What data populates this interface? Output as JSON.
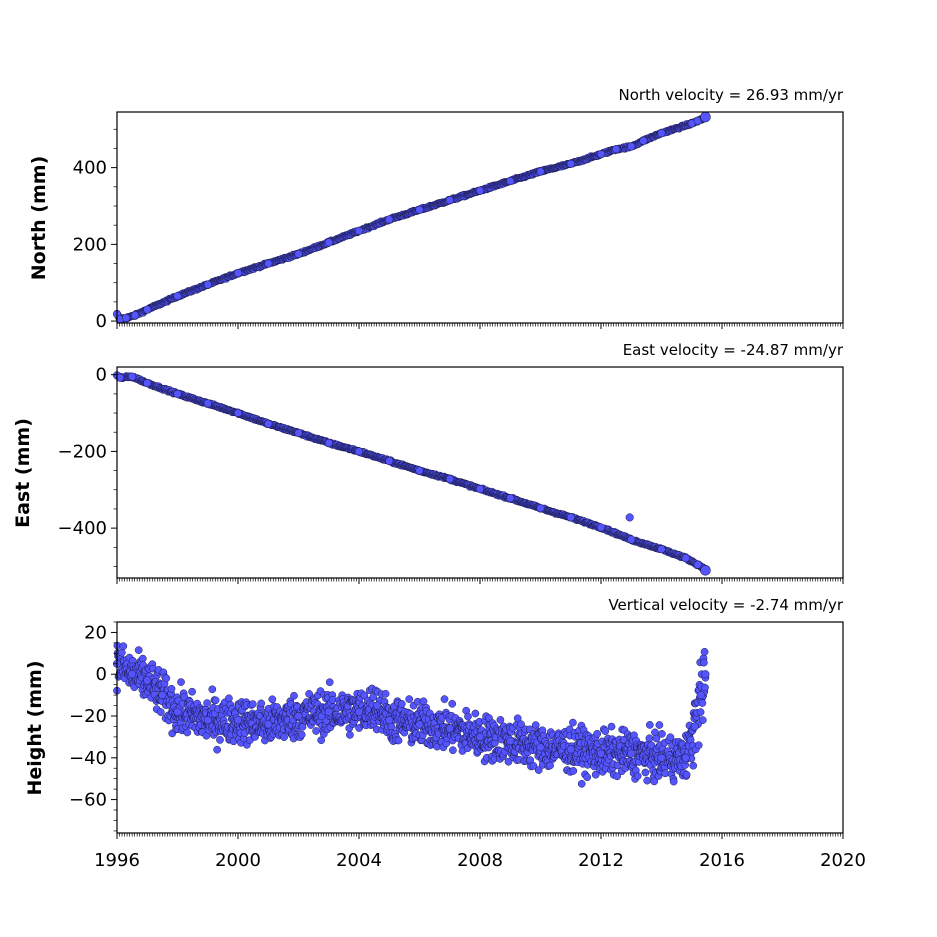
{
  "chart_data": [
    {
      "type": "scatter",
      "title": "North velocity = 26.93 mm/yr",
      "ylabel": "North (mm)",
      "xlabel": "",
      "xlim": [
        1996,
        2020
      ],
      "ylim": [
        -5,
        545
      ],
      "yticks": [
        0,
        200,
        400
      ],
      "ytick_labels": [
        "0",
        "200",
        "400"
      ],
      "grid": false,
      "marker_color": "#5555ff",
      "series": [
        {
          "x": [
            1996.0,
            1996.1,
            1996.3,
            1996.6,
            1997.0,
            1998.0,
            1999.0,
            2000.0,
            2001.0,
            2002.0,
            2003.0,
            2004.0,
            2005.0,
            2006.0,
            2007.0,
            2008.0,
            2009.0,
            2010.0,
            2011.0,
            2012.0,
            2012.5,
            2013.0,
            2013.4,
            2014.0,
            2015.0,
            2015.2,
            2015.4,
            2015.45
          ],
          "y": [
            18,
            5,
            8,
            15,
            30,
            65,
            95,
            125,
            150,
            175,
            205,
            235,
            265,
            290,
            315,
            340,
            365,
            390,
            410,
            435,
            448,
            455,
            470,
            490,
            515,
            522,
            528,
            532
          ]
        }
      ]
    },
    {
      "type": "scatter",
      "title": "East velocity = -24.87 mm/yr",
      "ylabel": "East (mm)",
      "xlabel": "",
      "xlim": [
        1996,
        2020
      ],
      "ylim": [
        -530,
        20
      ],
      "yticks": [
        -400,
        -200,
        0
      ],
      "ytick_labels": [
        "−400",
        "−200",
        "0"
      ],
      "grid": false,
      "marker_color": "#5555ff",
      "series": [
        {
          "x": [
            1996.0,
            1996.1,
            1996.5,
            1997.0,
            1998.0,
            1999.0,
            2000.0,
            2001.0,
            2002.0,
            2003.0,
            2004.0,
            2005.0,
            2006.0,
            2007.0,
            2008.0,
            2009.0,
            2010.0,
            2011.0,
            2012.0,
            2013.0,
            2014.0,
            2014.8,
            2015.2,
            2015.4,
            2015.45
          ],
          "y": [
            -2,
            -8,
            -5,
            -22,
            -50,
            -75,
            -100,
            -128,
            -152,
            -178,
            -200,
            -225,
            -250,
            -272,
            -298,
            -322,
            -348,
            -372,
            -398,
            -430,
            -455,
            -478,
            -495,
            -505,
            -510
          ]
        },
        {
          "name": "",
          "x": [
            2012.95
          ],
          "y": [
            -372
          ]
        }
      ]
    },
    {
      "type": "scatter",
      "title": "Vertical velocity = -2.74 mm/yr",
      "ylabel": "Height (mm)",
      "xlabel": "",
      "xlim": [
        1996,
        2020
      ],
      "ylim": [
        -76,
        25
      ],
      "yticks": [
        -60,
        -40,
        -20,
        0,
        20
      ],
      "ytick_labels": [
        "−60",
        "−40",
        "−20",
        "0",
        "20"
      ],
      "xticks": [
        1996,
        2000,
        2004,
        2008,
        2012,
        2016,
        2020
      ],
      "xtick_labels": [
        "1996",
        "2000",
        "2004",
        "2008",
        "2012",
        "2016",
        "2020"
      ],
      "grid": false,
      "marker_color": "#5555ff",
      "series": [
        {
          "x": [
            1996.0,
            1996.5,
            1997.0,
            1997.5,
            1998.0,
            1999.0,
            2000.0,
            2001.0,
            2002.0,
            2003.0,
            2004.0,
            2004.6,
            2005.0,
            2006.0,
            2007.0,
            2008.0,
            2009.0,
            2010.0,
            2011.0,
            2012.0,
            2013.0,
            2014.0,
            2014.8,
            2015.1,
            2015.3,
            2015.45
          ],
          "y": [
            5,
            0,
            -3,
            -10,
            -18,
            -22,
            -22,
            -24,
            -20,
            -18,
            -18,
            -15,
            -22,
            -24,
            -26,
            -30,
            -32,
            -35,
            -36,
            -38,
            -38,
            -40,
            -40,
            -25,
            -10,
            0
          ]
        }
      ]
    }
  ]
}
